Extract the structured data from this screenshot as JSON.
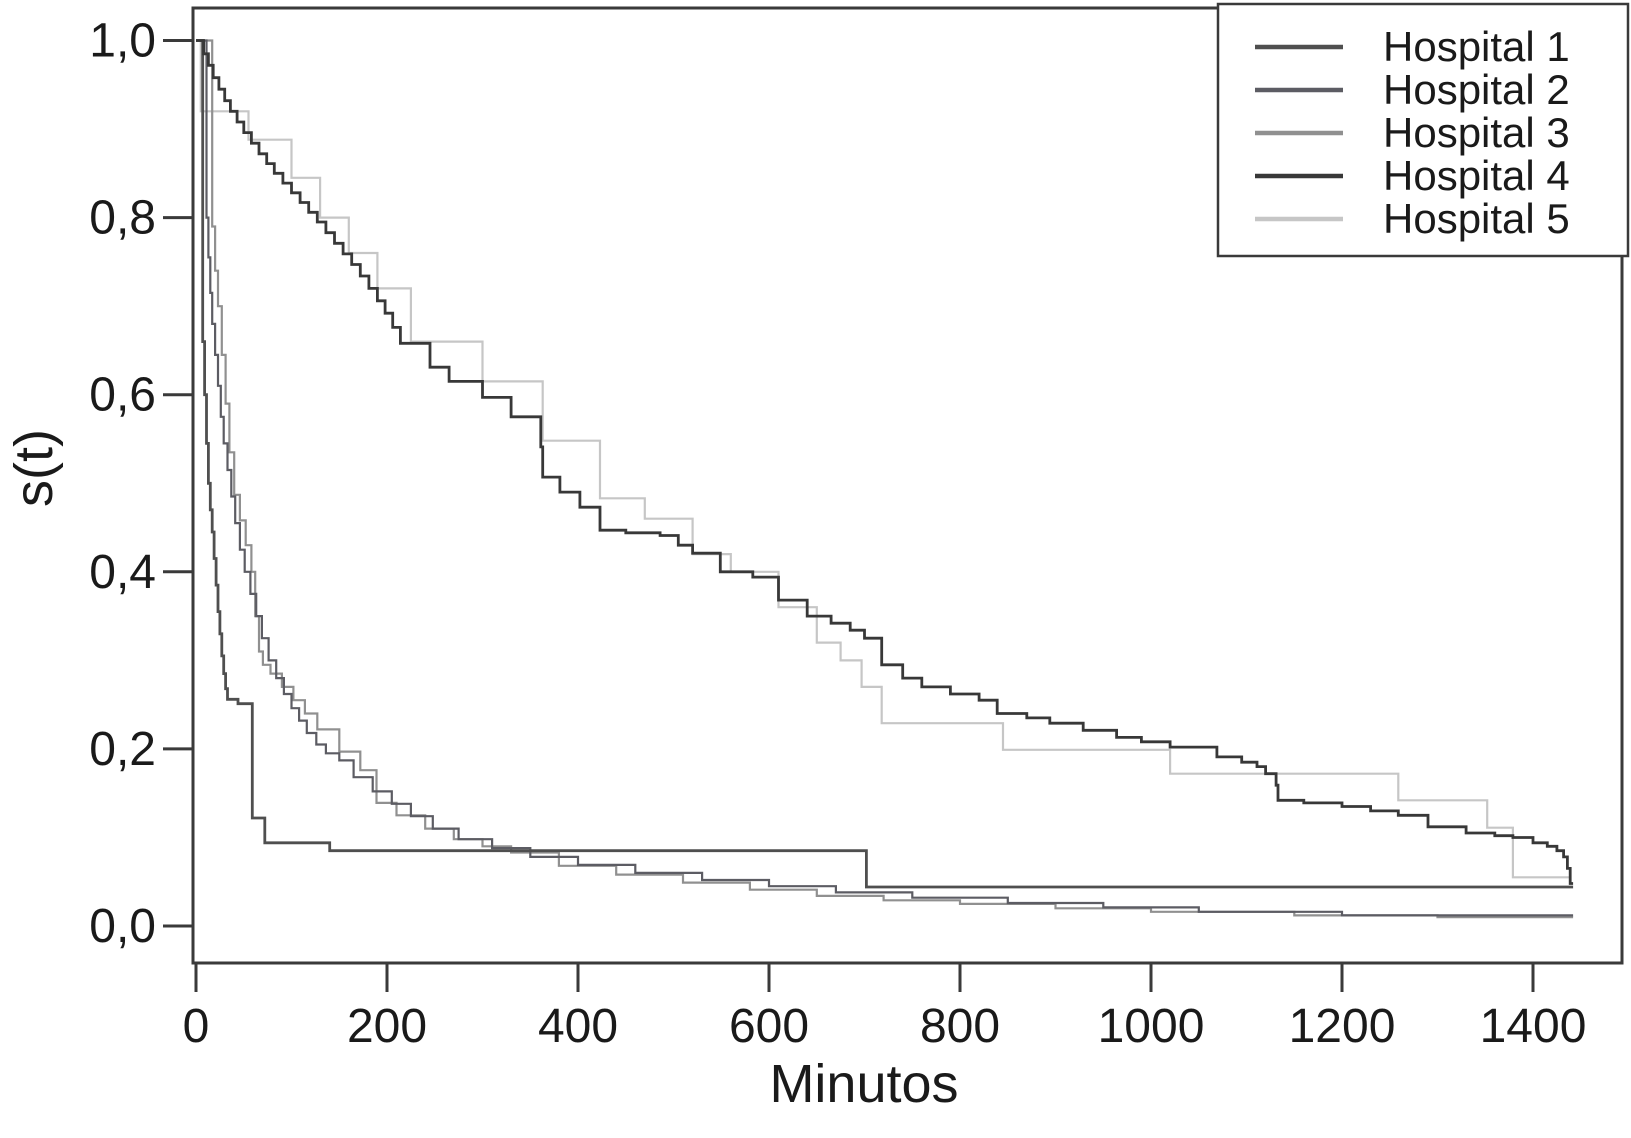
{
  "figure": {
    "background": "#ffffff",
    "text_color": "#1a1a1a",
    "frame_color": "#3a3a3a",
    "legend_border_color": "#3a3a3a"
  },
  "chart_data": {
    "type": "line",
    "subtype": "kaplan-meier-step-survival",
    "title": "",
    "xlabel": "Minutos",
    "ylabel": "s(t)",
    "xlim": [
      0,
      1493
    ],
    "ylim": [
      -0.042,
      1.037
    ],
    "grid": false,
    "legend_position": "top-right",
    "x_ticks": [
      0,
      200,
      400,
      600,
      800,
      1000,
      1200,
      1400
    ],
    "x_tick_labels": [
      "0",
      "200",
      "400",
      "600",
      "800",
      "1000",
      "1200",
      "1400"
    ],
    "y_ticks": [
      0.0,
      0.2,
      0.4,
      0.6,
      0.8,
      1.0
    ],
    "y_tick_labels": [
      "0,0",
      "0,2",
      "0,4",
      "0,6",
      "0,8",
      "1,0"
    ],
    "series": [
      {
        "name": "Hospital 1",
        "color": "#4f4f4f",
        "width": 2.8,
        "points": [
          [
            0,
            1.0
          ],
          [
            7,
            0.66
          ],
          [
            9,
            0.6
          ],
          [
            11,
            0.545
          ],
          [
            13,
            0.5
          ],
          [
            15,
            0.47
          ],
          [
            17,
            0.445
          ],
          [
            19,
            0.415
          ],
          [
            21,
            0.385
          ],
          [
            23,
            0.355
          ],
          [
            25,
            0.33
          ],
          [
            27,
            0.305
          ],
          [
            29,
            0.285
          ],
          [
            31,
            0.268
          ],
          [
            33,
            0.256
          ],
          [
            44,
            0.251
          ],
          [
            59,
            0.122
          ],
          [
            72,
            0.094
          ],
          [
            140,
            0.085
          ],
          [
            700,
            0.085
          ],
          [
            702,
            0.044
          ],
          [
            1442,
            0.044
          ]
        ]
      },
      {
        "name": "Hospital 2",
        "color": "#5c5c63",
        "width": 2.2,
        "points": [
          [
            0,
            1.0
          ],
          [
            11,
            0.8
          ],
          [
            13,
            0.755
          ],
          [
            15,
            0.715
          ],
          [
            17,
            0.68
          ],
          [
            20,
            0.645
          ],
          [
            23,
            0.61
          ],
          [
            26,
            0.575
          ],
          [
            29,
            0.545
          ],
          [
            33,
            0.515
          ],
          [
            37,
            0.485
          ],
          [
            41,
            0.455
          ],
          [
            46,
            0.425
          ],
          [
            51,
            0.4
          ],
          [
            57,
            0.375
          ],
          [
            63,
            0.35
          ],
          [
            69,
            0.325
          ],
          [
            76,
            0.3
          ],
          [
            84,
            0.28
          ],
          [
            92,
            0.262
          ],
          [
            100,
            0.246
          ],
          [
            108,
            0.232
          ],
          [
            116,
            0.218
          ],
          [
            126,
            0.205
          ],
          [
            136,
            0.195
          ],
          [
            150,
            0.187
          ],
          [
            165,
            0.168
          ],
          [
            185,
            0.152
          ],
          [
            205,
            0.138
          ],
          [
            225,
            0.124
          ],
          [
            248,
            0.11
          ],
          [
            275,
            0.098
          ],
          [
            310,
            0.088
          ],
          [
            350,
            0.078
          ],
          [
            400,
            0.069
          ],
          [
            460,
            0.06
          ],
          [
            530,
            0.052
          ],
          [
            600,
            0.045
          ],
          [
            670,
            0.038
          ],
          [
            750,
            0.032
          ],
          [
            850,
            0.026
          ],
          [
            950,
            0.021
          ],
          [
            1050,
            0.016
          ],
          [
            1200,
            0.012
          ],
          [
            1442,
            0.012
          ]
        ]
      },
      {
        "name": "Hospital 3",
        "color": "#909090",
        "width": 2.2,
        "points": [
          [
            0,
            1.0
          ],
          [
            17,
            0.79
          ],
          [
            20,
            0.74
          ],
          [
            23,
            0.7
          ],
          [
            27,
            0.645
          ],
          [
            31,
            0.59
          ],
          [
            35,
            0.535
          ],
          [
            40,
            0.487
          ],
          [
            46,
            0.458
          ],
          [
            52,
            0.43
          ],
          [
            58,
            0.4
          ],
          [
            62,
            0.35
          ],
          [
            66,
            0.31
          ],
          [
            70,
            0.295
          ],
          [
            78,
            0.285
          ],
          [
            90,
            0.27
          ],
          [
            102,
            0.255
          ],
          [
            114,
            0.24
          ],
          [
            127,
            0.222
          ],
          [
            150,
            0.197
          ],
          [
            172,
            0.176
          ],
          [
            189,
            0.139
          ],
          [
            210,
            0.125
          ],
          [
            240,
            0.11
          ],
          [
            270,
            0.098
          ],
          [
            300,
            0.09
          ],
          [
            330,
            0.083
          ],
          [
            380,
            0.068
          ],
          [
            440,
            0.058
          ],
          [
            510,
            0.049
          ],
          [
            580,
            0.041
          ],
          [
            650,
            0.034
          ],
          [
            720,
            0.029
          ],
          [
            800,
            0.025
          ],
          [
            900,
            0.02
          ],
          [
            1000,
            0.016
          ],
          [
            1150,
            0.012
          ],
          [
            1300,
            0.01
          ],
          [
            1442,
            0.01
          ]
        ]
      },
      {
        "name": "Hospital 4",
        "color": "#383838",
        "width": 2.8,
        "points": [
          [
            0,
            1.0
          ],
          [
            8,
            0.985
          ],
          [
            13,
            0.972
          ],
          [
            18,
            0.958
          ],
          [
            24,
            0.945
          ],
          [
            30,
            0.932
          ],
          [
            36,
            0.92
          ],
          [
            43,
            0.908
          ],
          [
            50,
            0.896
          ],
          [
            58,
            0.884
          ],
          [
            66,
            0.872
          ],
          [
            74,
            0.861
          ],
          [
            82,
            0.85
          ],
          [
            91,
            0.839
          ],
          [
            100,
            0.828
          ],
          [
            109,
            0.817
          ],
          [
            118,
            0.806
          ],
          [
            127,
            0.795
          ],
          [
            136,
            0.783
          ],
          [
            145,
            0.771
          ],
          [
            154,
            0.759
          ],
          [
            163,
            0.747
          ],
          [
            172,
            0.734
          ],
          [
            181,
            0.72
          ],
          [
            190,
            0.706
          ],
          [
            198,
            0.692
          ],
          [
            206,
            0.676
          ],
          [
            214,
            0.658
          ],
          [
            245,
            0.631
          ],
          [
            265,
            0.615
          ],
          [
            300,
            0.597
          ],
          [
            330,
            0.575
          ],
          [
            361,
            0.541
          ],
          [
            363,
            0.507
          ],
          [
            381,
            0.49
          ],
          [
            402,
            0.473
          ],
          [
            423,
            0.447
          ],
          [
            450,
            0.444
          ],
          [
            486,
            0.441
          ],
          [
            505,
            0.43
          ],
          [
            520,
            0.421
          ],
          [
            549,
            0.4
          ],
          [
            583,
            0.394
          ],
          [
            610,
            0.368
          ],
          [
            640,
            0.35
          ],
          [
            665,
            0.342
          ],
          [
            685,
            0.334
          ],
          [
            700,
            0.325
          ],
          [
            718,
            0.295
          ],
          [
            740,
            0.28
          ],
          [
            760,
            0.27
          ],
          [
            790,
            0.262
          ],
          [
            820,
            0.255
          ],
          [
            839,
            0.24
          ],
          [
            870,
            0.235
          ],
          [
            894,
            0.229
          ],
          [
            929,
            0.221
          ],
          [
            964,
            0.213
          ],
          [
            990,
            0.208
          ],
          [
            1020,
            0.202
          ],
          [
            1069,
            0.191
          ],
          [
            1095,
            0.185
          ],
          [
            1111,
            0.18
          ],
          [
            1120,
            0.172
          ],
          [
            1131,
            0.159
          ],
          [
            1133,
            0.142
          ],
          [
            1160,
            0.139
          ],
          [
            1200,
            0.135
          ],
          [
            1230,
            0.13
          ],
          [
            1259,
            0.125
          ],
          [
            1290,
            0.112
          ],
          [
            1330,
            0.105
          ],
          [
            1360,
            0.102
          ],
          [
            1379,
            0.1
          ],
          [
            1400,
            0.094
          ],
          [
            1415,
            0.09
          ],
          [
            1425,
            0.085
          ],
          [
            1432,
            0.078
          ],
          [
            1436,
            0.065
          ],
          [
            1439,
            0.048
          ],
          [
            1442,
            0.048
          ]
        ]
      },
      {
        "name": "Hospital 5",
        "color": "#c6c6c6",
        "width": 2.2,
        "points": [
          [
            0,
            1.0
          ],
          [
            5,
            0.92
          ],
          [
            55,
            0.888
          ],
          [
            100,
            0.845
          ],
          [
            130,
            0.8
          ],
          [
            160,
            0.76
          ],
          [
            190,
            0.72
          ],
          [
            225,
            0.66
          ],
          [
            300,
            0.615
          ],
          [
            363,
            0.548
          ],
          [
            423,
            0.483
          ],
          [
            470,
            0.46
          ],
          [
            520,
            0.42
          ],
          [
            560,
            0.4
          ],
          [
            610,
            0.36
          ],
          [
            650,
            0.32
          ],
          [
            675,
            0.3
          ],
          [
            697,
            0.27
          ],
          [
            718,
            0.229
          ],
          [
            845,
            0.199
          ],
          [
            1020,
            0.172
          ],
          [
            1259,
            0.142
          ],
          [
            1352,
            0.111
          ],
          [
            1379,
            0.055
          ],
          [
            1440,
            0.055
          ]
        ]
      }
    ]
  },
  "legend": {
    "entries": [
      "Hospital 1",
      "Hospital 2",
      "Hospital 3",
      "Hospital 4",
      "Hospital 5"
    ]
  }
}
